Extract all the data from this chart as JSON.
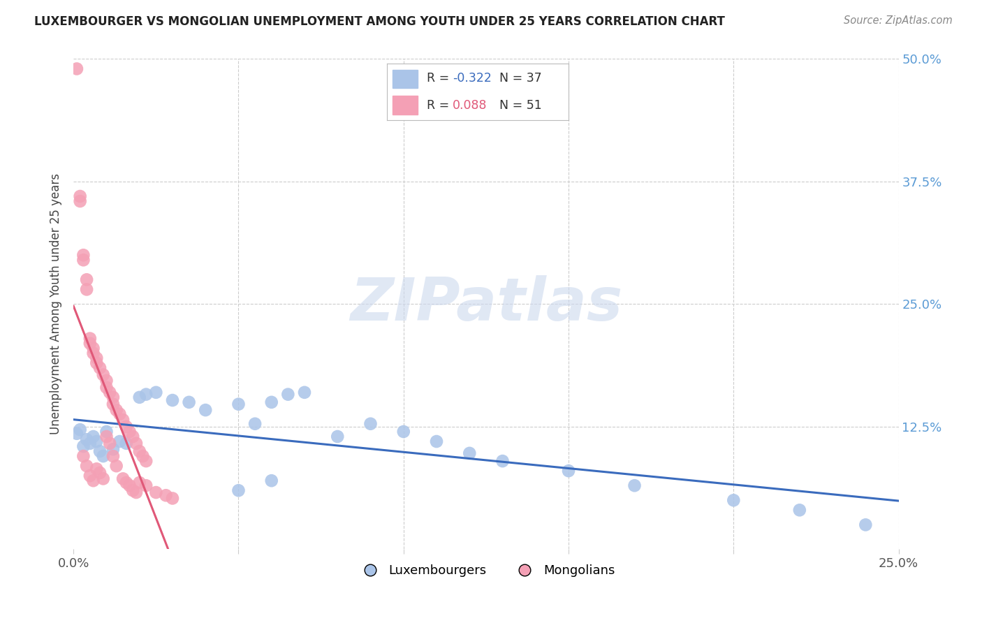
{
  "title": "LUXEMBOURGER VS MONGOLIAN UNEMPLOYMENT AMONG YOUTH UNDER 25 YEARS CORRELATION CHART",
  "source": "Source: ZipAtlas.com",
  "ylabel": "Unemployment Among Youth under 25 years",
  "watermark": "ZIPatlas",
  "xlim": [
    0.0,
    0.25
  ],
  "ylim": [
    0.0,
    0.5
  ],
  "lux_R": -0.322,
  "lux_N": 37,
  "mon_R": 0.088,
  "mon_N": 51,
  "lux_color": "#aac4e8",
  "mon_color": "#f4a0b5",
  "lux_line_color": "#3a6bbd",
  "mon_line_color": "#e05878",
  "mon_dashed_color": "#e8909a",
  "background_color": "#ffffff",
  "grid_color": "#cccccc",
  "lux_x": [
    0.001,
    0.002,
    0.003,
    0.004,
    0.005,
    0.006,
    0.007,
    0.008,
    0.009,
    0.01,
    0.012,
    0.014,
    0.016,
    0.02,
    0.022,
    0.025,
    0.03,
    0.035,
    0.04,
    0.05,
    0.055,
    0.06,
    0.065,
    0.07,
    0.09,
    0.1,
    0.11,
    0.12,
    0.13,
    0.15,
    0.17,
    0.2,
    0.22,
    0.24,
    0.05,
    0.06,
    0.08
  ],
  "lux_y": [
    0.118,
    0.122,
    0.105,
    0.112,
    0.108,
    0.115,
    0.11,
    0.1,
    0.095,
    0.12,
    0.102,
    0.11,
    0.108,
    0.155,
    0.158,
    0.16,
    0.152,
    0.15,
    0.142,
    0.148,
    0.128,
    0.15,
    0.158,
    0.16,
    0.128,
    0.12,
    0.11,
    0.098,
    0.09,
    0.08,
    0.065,
    0.05,
    0.04,
    0.025,
    0.06,
    0.07,
    0.115
  ],
  "mon_x": [
    0.001,
    0.002,
    0.002,
    0.003,
    0.003,
    0.004,
    0.004,
    0.005,
    0.005,
    0.006,
    0.006,
    0.007,
    0.007,
    0.008,
    0.009,
    0.01,
    0.01,
    0.011,
    0.012,
    0.012,
    0.013,
    0.014,
    0.015,
    0.016,
    0.017,
    0.018,
    0.019,
    0.02,
    0.021,
    0.022,
    0.003,
    0.004,
    0.005,
    0.006,
    0.007,
    0.008,
    0.009,
    0.01,
    0.011,
    0.012,
    0.013,
    0.015,
    0.016,
    0.017,
    0.018,
    0.019,
    0.02,
    0.022,
    0.025,
    0.028,
    0.03
  ],
  "mon_y": [
    0.49,
    0.355,
    0.36,
    0.3,
    0.295,
    0.275,
    0.265,
    0.215,
    0.21,
    0.205,
    0.2,
    0.195,
    0.19,
    0.185,
    0.178,
    0.172,
    0.165,
    0.16,
    0.155,
    0.148,
    0.142,
    0.138,
    0.132,
    0.125,
    0.12,
    0.115,
    0.108,
    0.1,
    0.095,
    0.09,
    0.095,
    0.085,
    0.075,
    0.07,
    0.082,
    0.078,
    0.072,
    0.115,
    0.108,
    0.095,
    0.085,
    0.072,
    0.068,
    0.065,
    0.06,
    0.058,
    0.068,
    0.065,
    0.058,
    0.055,
    0.052
  ]
}
